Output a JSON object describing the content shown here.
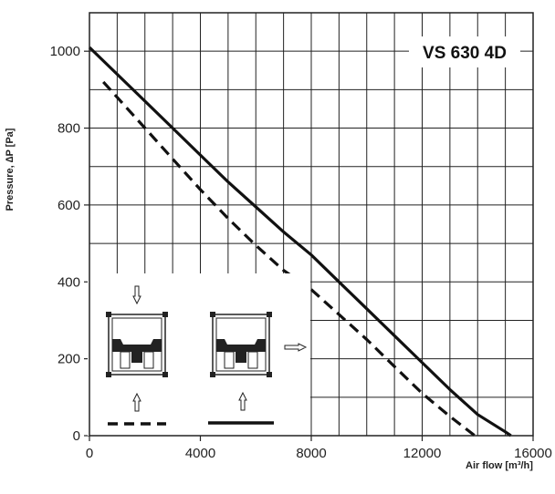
{
  "chart_data": {
    "type": "line",
    "title": "VS 630 4D",
    "xlabel": "Air flow [m³/h]",
    "ylabel": "Pressure, ∆P [Pa]",
    "xlim": [
      0,
      16000
    ],
    "ylim": [
      0,
      1100
    ],
    "x_ticks": [
      "0",
      "4000",
      "8000",
      "12000",
      "16000"
    ],
    "y_ticks": [
      "0",
      "200",
      "400",
      "600",
      "800",
      "1000"
    ],
    "grid": true,
    "series": [
      {
        "style": "solid",
        "x": [
          0,
          1000,
          2000,
          3000,
          4000,
          5000,
          6000,
          7000,
          8000,
          9000,
          10000,
          11000,
          12000,
          13000,
          14000,
          15000,
          15200
        ],
        "y": [
          1010,
          940,
          870,
          800,
          730,
          660,
          595,
          530,
          470,
          400,
          330,
          260,
          190,
          120,
          55,
          10,
          0
        ]
      },
      {
        "style": "dashed",
        "x": [
          500,
          1000,
          2000,
          3000,
          4000,
          5000,
          6000,
          7000,
          8000,
          9000,
          10000,
          11000,
          12000,
          13000,
          13900
        ],
        "y": [
          920,
          880,
          800,
          720,
          640,
          565,
          495,
          430,
          380,
          315,
          250,
          180,
          110,
          50,
          0
        ]
      }
    ],
    "inset": {
      "description_visible": false
    }
  }
}
